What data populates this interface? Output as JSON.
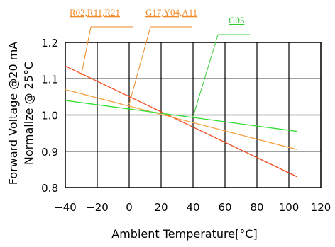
{
  "chart_data": {
    "type": "line",
    "xlabel": "Ambient Temperature[°C]",
    "ylabel_line1": "Forward Voltage @20 mA",
    "ylabel_line2": "Normalize @ 25°C",
    "xlim": [
      -40,
      120
    ],
    "ylim": [
      0.8,
      1.2
    ],
    "x_ticks": [
      -40,
      -20,
      0,
      20,
      40,
      60,
      80,
      100,
      120
    ],
    "y_ticks": [
      0.8,
      0.9,
      1.0,
      1.1,
      1.2
    ],
    "grid": true,
    "series": [
      {
        "name": "R02,R11,R21",
        "color": "#f04a1a",
        "x": [
          -40,
          105
        ],
        "y": [
          1.135,
          0.83
        ]
      },
      {
        "name": "G17,Y04,A11",
        "color": "#f5a040",
        "x": [
          -40,
          105
        ],
        "y": [
          1.07,
          0.905
        ]
      },
      {
        "name": "G05",
        "color": "#33dd33",
        "x": [
          -40,
          105
        ],
        "y": [
          1.04,
          0.955
        ]
      }
    ],
    "annotations": [
      {
        "text": "R02,R11,R21",
        "color": "#f08a28",
        "target_x": -30,
        "target_y": 1.11
      },
      {
        "text": "G17,Y04,A11",
        "color": "#f08a28",
        "target_x": 0,
        "target_y": 1.03
      },
      {
        "text": "G05",
        "color": "#33cc33",
        "target_x": 40,
        "target_y": 0.995
      }
    ]
  }
}
